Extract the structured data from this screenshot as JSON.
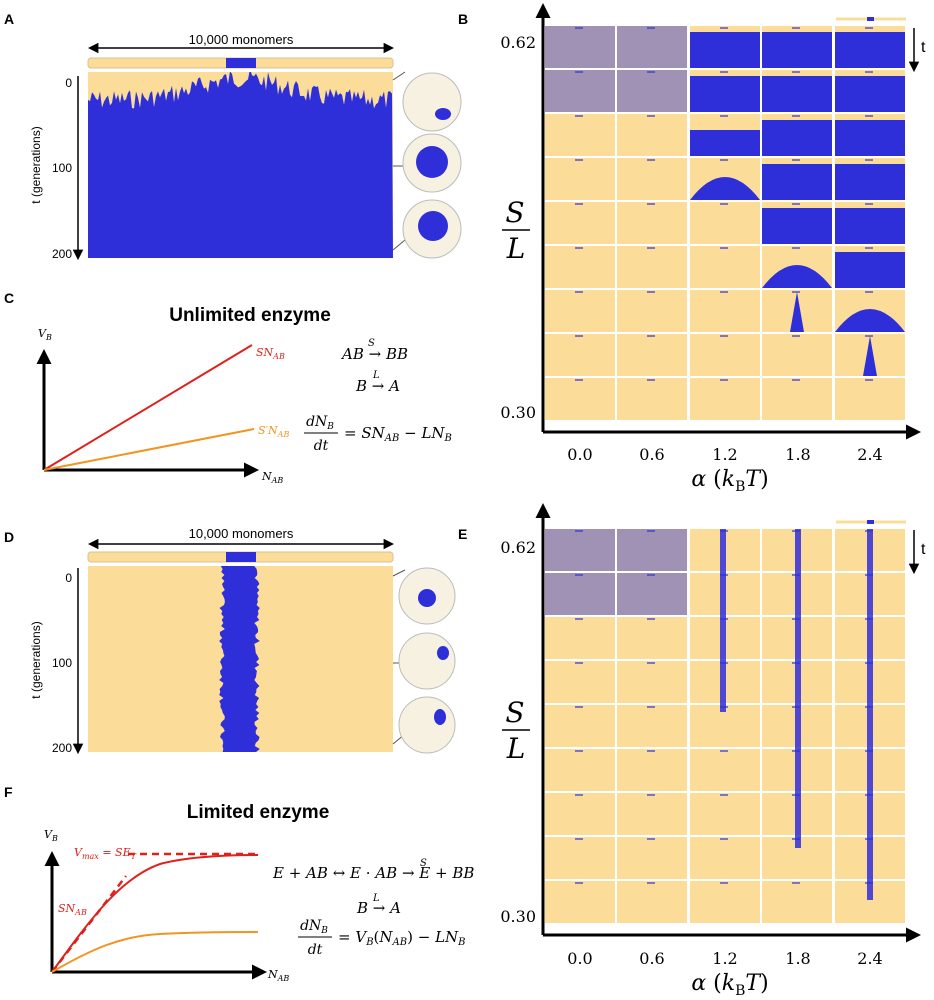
{
  "colors": {
    "blue": "#2f2fd9",
    "yellow": "#fbdc99",
    "red": "#e0201c",
    "orange": "#f29420",
    "black": "#000000"
  },
  "panel_labels": [
    "A",
    "B",
    "C",
    "D",
    "E",
    "F"
  ],
  "panel_A": {
    "monomers_label": "10,000 monomers",
    "y_ticks": [
      "0",
      "100",
      "200"
    ],
    "ylabel": "t (generations)"
  },
  "panel_B": {
    "y_top": "0.62",
    "y_bottom": "0.30",
    "ylabel_num": "S",
    "ylabel_den": "L",
    "x_ticks": [
      "0.0",
      "0.6",
      "1.2",
      "1.8",
      "2.4"
    ],
    "xlabel": "α (kBT)",
    "time_label": "t",
    "rows": 9,
    "cols": 5
  },
  "panel_C": {
    "title": "Unlimited enzyme",
    "y_axis": "V_B",
    "x_axis": "N_AB",
    "line1_label": "SN_AB",
    "line2_label": "S'N_AB",
    "eq1": "AB →(S) BB",
    "eq2": "B →(L) A",
    "eq3_lhs_num": "dN_B",
    "eq3_lhs_den": "dt",
    "eq3_rhs": "= SN_AB − LN_B"
  },
  "panel_D": {
    "monomers_label": "10,000 monomers",
    "y_ticks": [
      "0",
      "100",
      "200"
    ],
    "ylabel": "t (generations)"
  },
  "panel_E": {
    "y_top": "0.62",
    "y_bottom": "0.30",
    "ylabel_num": "S",
    "ylabel_den": "L",
    "x_ticks": [
      "0.0",
      "0.6",
      "1.2",
      "1.8",
      "2.4"
    ],
    "xlabel": "α (kBT)",
    "time_label": "t"
  },
  "panel_F": {
    "title": "Limited enzyme",
    "y_axis": "V_B",
    "x_axis": "N_AB",
    "vmax_label": "V_max = SE_T",
    "slope_label": "SN_AB",
    "eq1": "E + AB ↔ E · AB →(S) E + BB",
    "eq2": "B →(L) A",
    "eq3_lhs_num": "dN_B",
    "eq3_lhs_den": "dt",
    "eq3_rhs": "= V_B(N_AB) − LN_B"
  }
}
